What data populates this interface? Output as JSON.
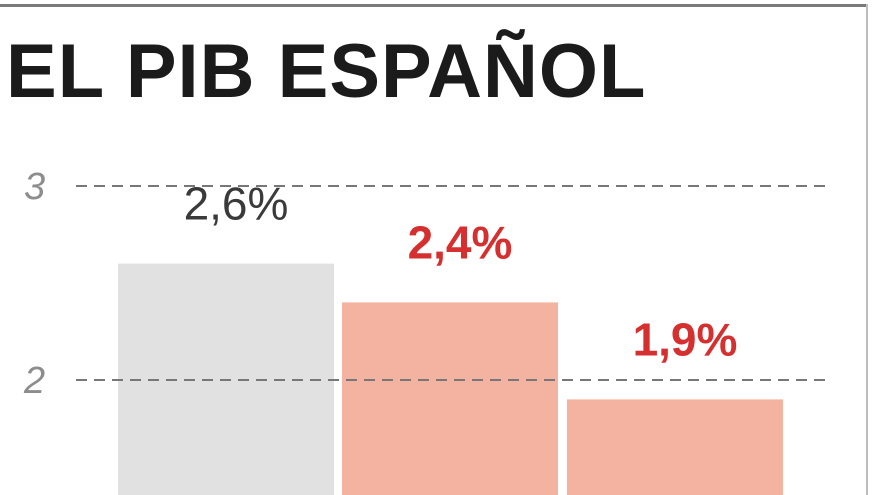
{
  "title": "EL PIB ESPAÑOL",
  "chart_data": {
    "type": "bar",
    "title": "EL PIB ESPAÑOL",
    "categories": [
      "",
      "",
      ""
    ],
    "values": [
      2.6,
      2.4,
      1.9
    ],
    "value_labels": [
      "2,6%",
      "2,4%",
      "1,9%"
    ],
    "ylim": [
      1.4,
      3
    ],
    "y_ticks": [
      3,
      2
    ],
    "y_tick_labels": [
      "3",
      "2"
    ],
    "grid": true,
    "colors": {
      "bars": [
        "#e1e1e1",
        "#f4b3a0",
        "#f4b3a0"
      ],
      "labels": [
        "#3a3a3a",
        "#d62f2f",
        "#d62f2f"
      ],
      "grid": "#777777",
      "ticks": "#8d8d8d"
    },
    "label_bold": [
      false,
      true,
      true
    ]
  }
}
